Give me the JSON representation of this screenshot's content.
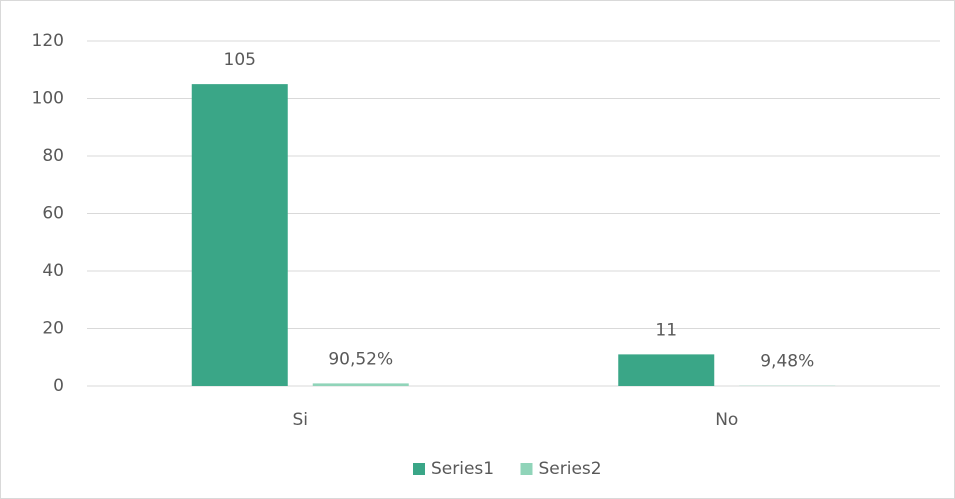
{
  "chart_data": {
    "type": "bar",
    "categories": [
      "Si",
      "No"
    ],
    "series": [
      {
        "name": "Series1",
        "color": "#3aa687",
        "values": [
          105,
          11
        ]
      },
      {
        "name": "Series2",
        "color": "#90d4b9",
        "values": [
          0.9052,
          0.0948
        ],
        "value_labels": [
          "90,52%",
          "9,48%"
        ]
      }
    ],
    "ylim": [
      0,
      120
    ],
    "yticks": [
      0,
      20,
      40,
      60,
      80,
      100,
      120
    ],
    "grid": true,
    "legend": "bottom"
  }
}
